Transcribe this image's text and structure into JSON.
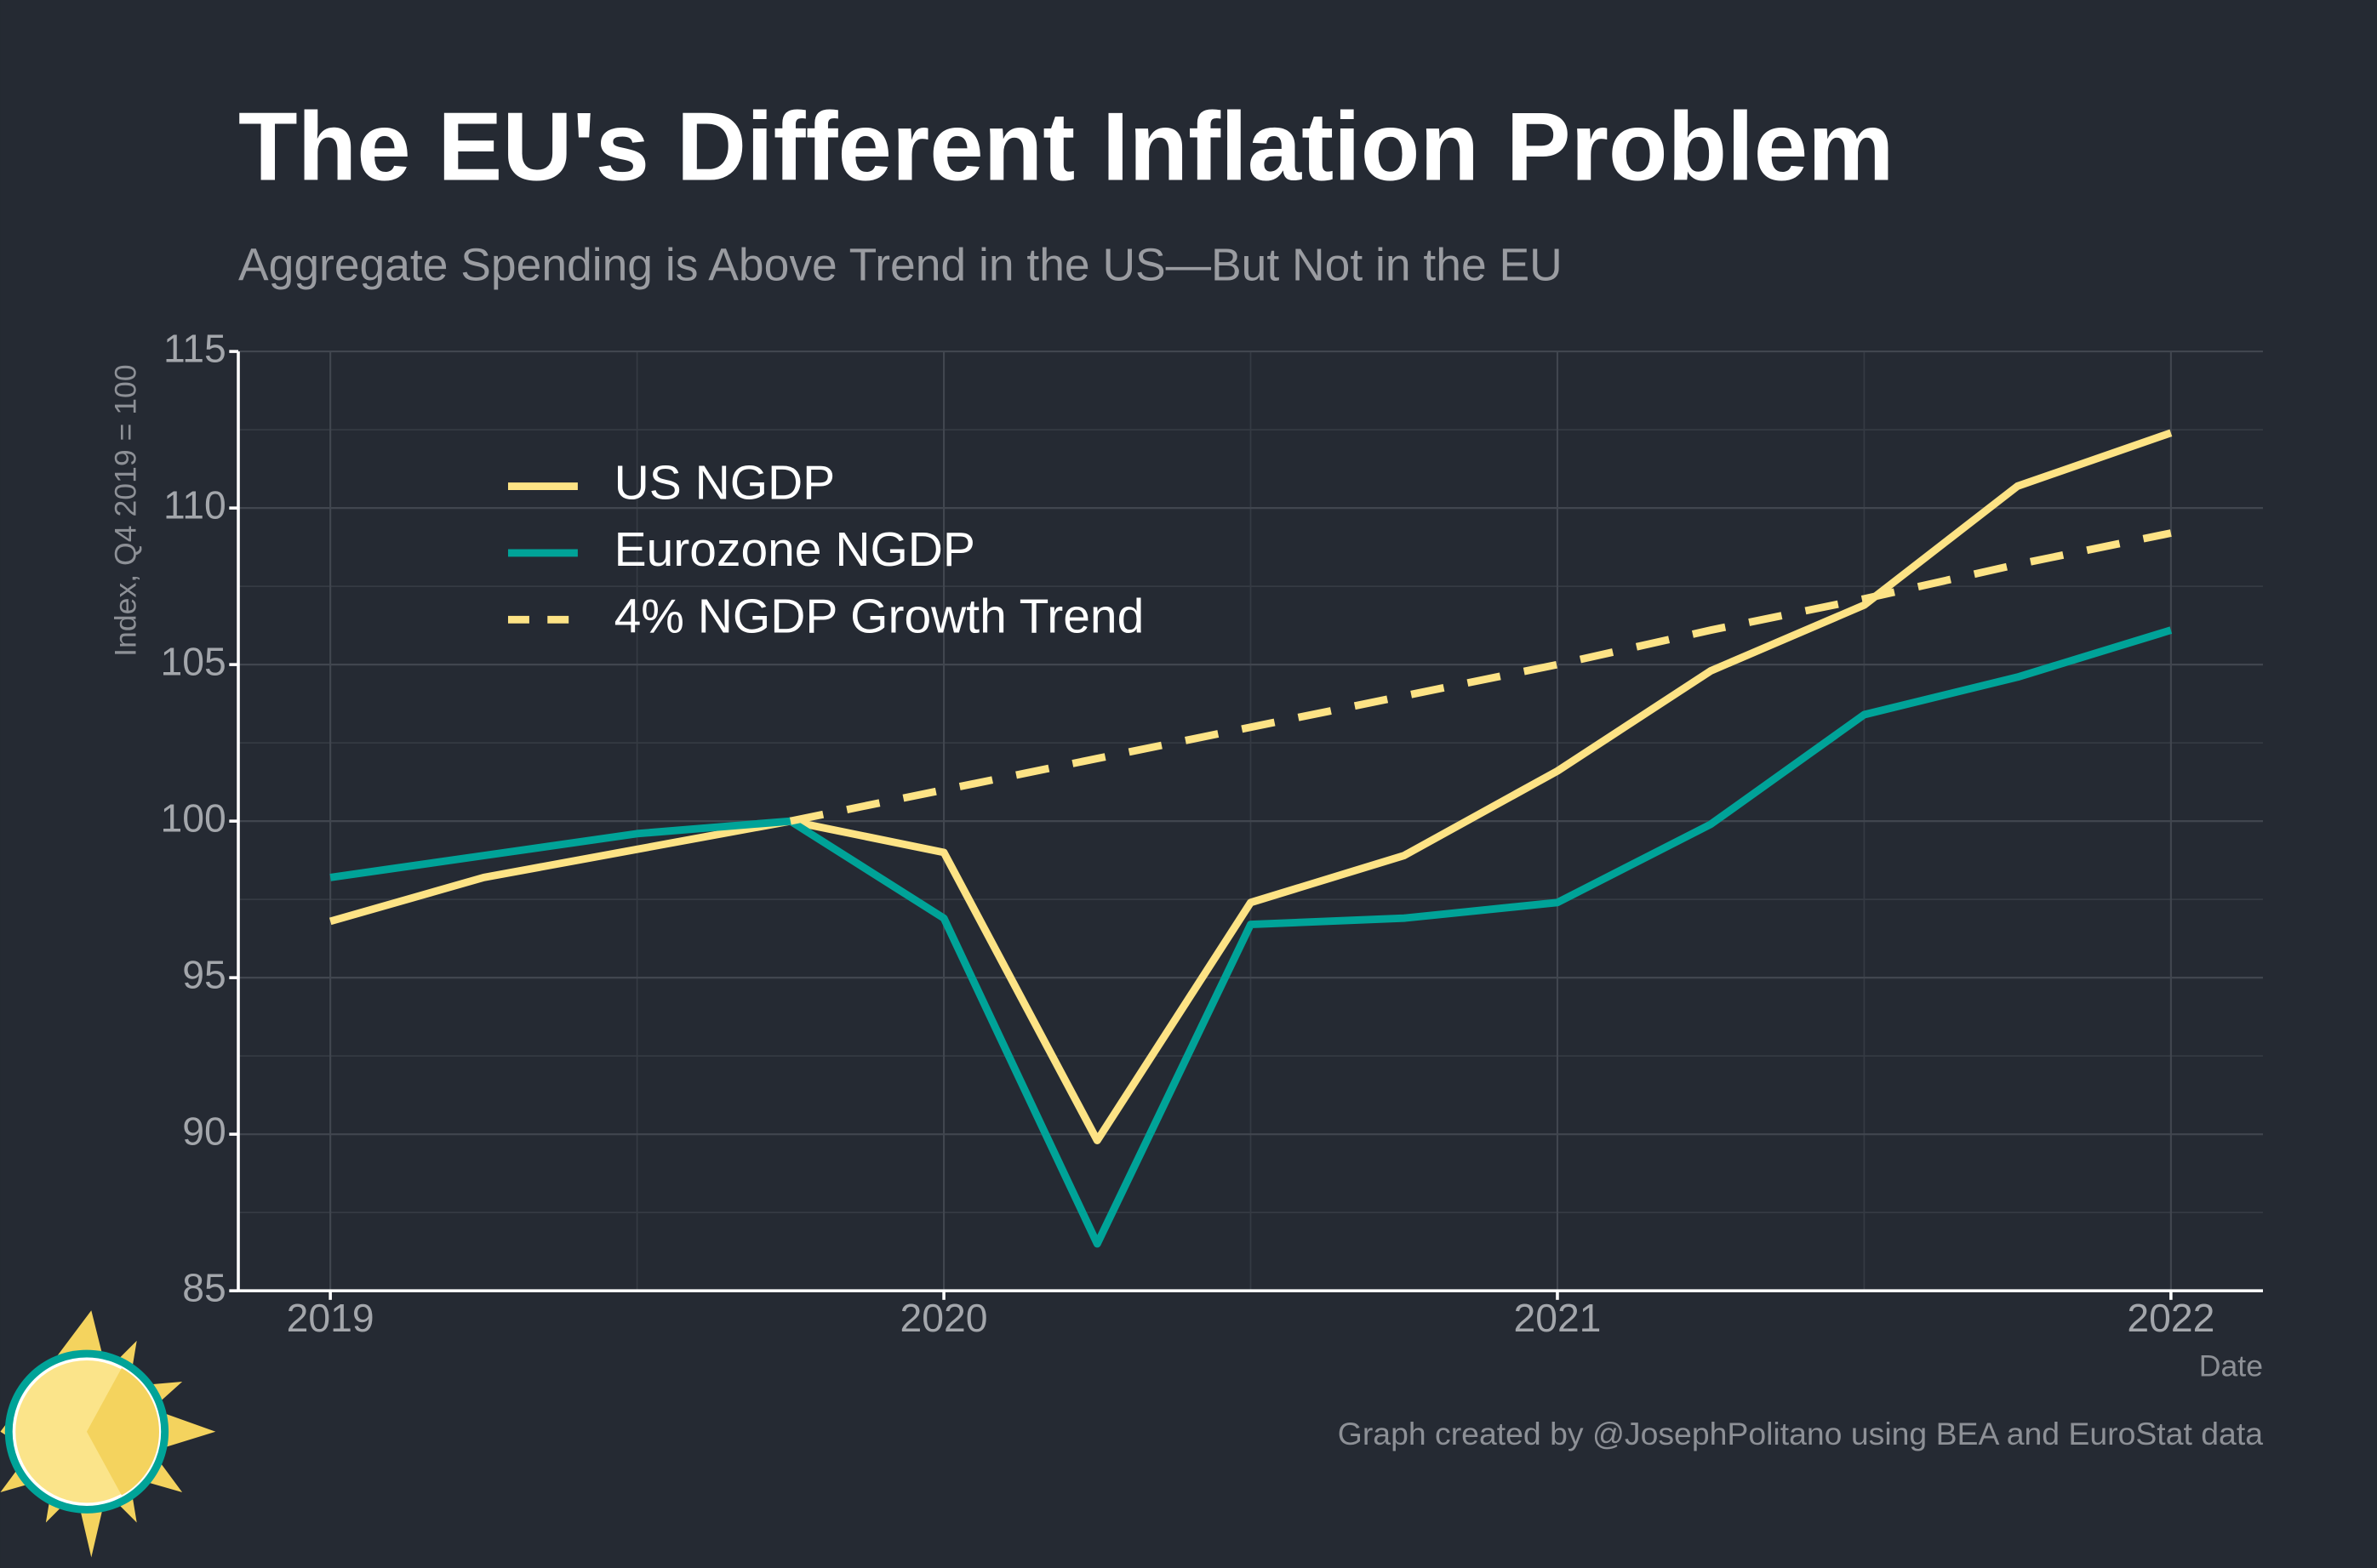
{
  "chart_data": {
    "type": "line",
    "title": "The EU's Different Inflation Problem",
    "subtitle": "Aggregate Spending is Above Trend in the US—But Not in the EU",
    "y_label": "Index, Q4 2019 = 100",
    "x_label": "Date",
    "caption": "Graph created by @JosephPolitano using BEA and EuroStat data",
    "x": [
      2019,
      2019.25,
      2019.5,
      2019.75,
      2020,
      2020.25,
      2020.5,
      2020.75,
      2021,
      2021.25,
      2021.5,
      2021.75,
      2022
    ],
    "series": [
      {
        "name": "US NGDP",
        "color": "#fde385",
        "line_style": "solid",
        "values": [
          96.8,
          98.2,
          99.1,
          100,
          99.0,
          89.8,
          97.4,
          98.9,
          101.6,
          104.8,
          106.9,
          110.7,
          112.4
        ]
      },
      {
        "name": "Eurozone NGDP",
        "color": "#00a398",
        "line_style": "solid",
        "values": [
          98.2,
          98.9,
          99.6,
          100,
          96.9,
          86.5,
          96.7,
          96.9,
          97.4,
          99.9,
          103.4,
          104.6,
          106.1
        ]
      },
      {
        "name": "4% NGDP Growth Trend",
        "color": "#fde385",
        "line_style": "dashed",
        "values": [
          null,
          null,
          null,
          100,
          101.0,
          102.0,
          103.0,
          104.0,
          105.0,
          106.1,
          107.1,
          108.2,
          109.2
        ]
      }
    ],
    "xlim": [
      2018.85,
      2022.15
    ],
    "xticks": [
      2019,
      2020,
      2021,
      2022
    ],
    "ylim": [
      85,
      115
    ],
    "yticks": [
      85,
      90,
      95,
      100,
      105,
      110,
      115
    ],
    "grid": true,
    "legend": "upper left"
  }
}
